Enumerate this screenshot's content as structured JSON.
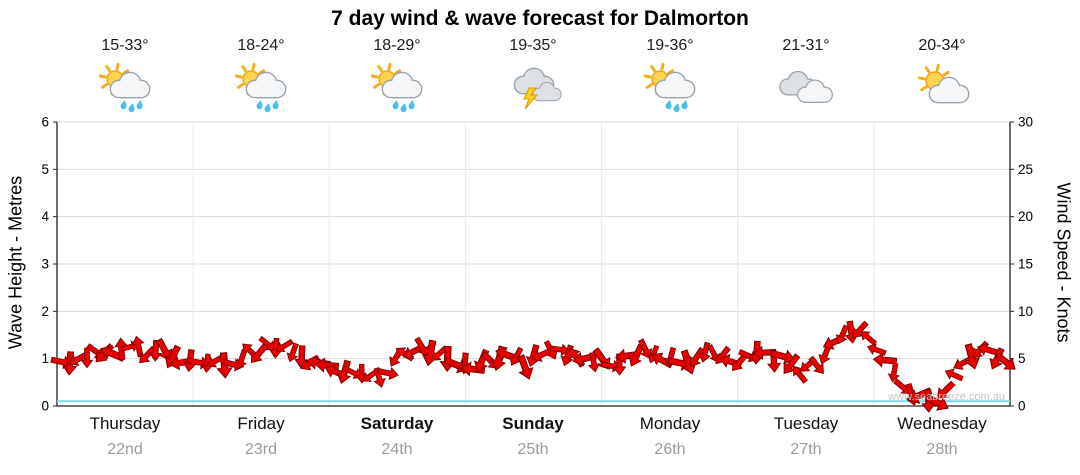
{
  "title": "7 day wind & wave forecast for Dalmorton",
  "watermark": "www.seabreeze.com.au",
  "left_axis": {
    "label": "Wave Height - Metres",
    "ticks": [
      "0",
      "1",
      "2",
      "3",
      "4",
      "5",
      "6"
    ]
  },
  "right_axis": {
    "label": "Wind Speed - Knots",
    "ticks": [
      "0",
      "5",
      "10",
      "15",
      "20",
      "25",
      "30"
    ]
  },
  "days": [
    {
      "name": "Thursday",
      "date": "22nd",
      "temp": "15-33°",
      "icon": "sun-showers",
      "bold": false
    },
    {
      "name": "Friday",
      "date": "23rd",
      "temp": "18-24°",
      "icon": "sun-showers",
      "bold": false
    },
    {
      "name": "Saturday",
      "date": "24th",
      "temp": "18-29°",
      "icon": "sun-showers",
      "bold": true
    },
    {
      "name": "Sunday",
      "date": "25th",
      "temp": "19-35°",
      "icon": "thunderstorm",
      "bold": true
    },
    {
      "name": "Monday",
      "date": "26th",
      "temp": "19-36°",
      "icon": "sun-showers",
      "bold": false
    },
    {
      "name": "Tuesday",
      "date": "27th",
      "temp": "21-31°",
      "icon": "cloudy",
      "bold": false
    },
    {
      "name": "Wednesday",
      "date": "28th",
      "temp": "20-34°",
      "icon": "partly-cloudy",
      "bold": false
    }
  ],
  "chart_data": {
    "type": "line",
    "title": "7 day wind & wave forecast for Dalmorton",
    "x": {
      "categories": [
        "Thursday",
        "Friday",
        "Saturday",
        "Sunday",
        "Monday",
        "Tuesday",
        "Wednesday"
      ],
      "samples_per_day": 8
    },
    "y_left": {
      "label": "Wave Height - Metres",
      "range": [
        0,
        6
      ]
    },
    "y_right": {
      "label": "Wind Speed - Knots",
      "range": [
        0,
        30
      ]
    },
    "grid": true,
    "legend": "none",
    "series": [
      {
        "name": "Wind Speed",
        "unit": "knots",
        "color": "#e60000",
        "style": "arrows",
        "values": [
          4.5,
          5.2,
          5.8,
          5.4,
          6.0,
          5.6,
          5.9,
          5.0,
          4.6,
          5.0,
          4.2,
          5.4,
          6.5,
          6.0,
          5.2,
          4.4,
          3.8,
          3.2,
          2.8,
          3.6,
          5.8,
          6.2,
          5.5,
          4.6,
          4.2,
          4.8,
          5.2,
          4.5,
          5.8,
          6.0,
          5.4,
          4.8,
          4.6,
          5.2,
          5.6,
          5.0,
          4.6,
          5.4,
          5.8,
          5.0,
          5.2,
          5.6,
          4.8,
          3.8,
          4.4,
          6.5,
          8.2,
          7.0,
          4.5,
          2.2,
          0.8,
          0.5,
          3.2,
          5.6,
          6.0,
          4.4
        ],
        "directions_deg": [
          20,
          160,
          45,
          200,
          355,
          140,
          60,
          185,
          25,
          155,
          10,
          210,
          45,
          150,
          80,
          200,
          190,
          30,
          160,
          5,
          220,
          70,
          140,
          20,
          175,
          35,
          200,
          60,
          145,
          10,
          230,
          85,
          20,
          165,
          50,
          195,
          0,
          130,
          75,
          210,
          35,
          180,
          15,
          225,
          55,
          160,
          90,
          205,
          170,
          25,
          150,
          40,
          215,
          65,
          185,
          30
        ]
      },
      {
        "name": "Wave Height",
        "unit": "metres",
        "color": "#7fd9ec",
        "style": "line",
        "values": [
          0.1,
          0.1,
          0.1,
          0.1,
          0.1,
          0.1,
          0.1,
          0.1,
          0.1,
          0.1,
          0.1,
          0.1,
          0.1,
          0.1,
          0.1,
          0.1,
          0.1,
          0.1,
          0.1,
          0.1,
          0.1,
          0.1,
          0.1,
          0.1,
          0.1,
          0.1,
          0.1,
          0.1,
          0.1,
          0.1,
          0.1,
          0.1,
          0.1,
          0.1,
          0.1,
          0.1,
          0.1,
          0.1,
          0.1,
          0.1,
          0.1,
          0.1,
          0.1,
          0.1,
          0.1,
          0.1,
          0.1,
          0.1,
          0.1,
          0.1,
          0.1,
          0.1,
          0.1,
          0.1,
          0.1,
          0.1
        ]
      }
    ]
  }
}
